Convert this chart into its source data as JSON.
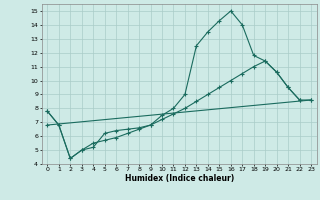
{
  "xlabel": "Humidex (Indice chaleur)",
  "bg_color": "#ceeae6",
  "grid_color": "#aaccc8",
  "line_color": "#1a6b5e",
  "xlim": [
    -0.5,
    23.5
  ],
  "ylim": [
    4,
    15.5
  ],
  "xticks": [
    0,
    1,
    2,
    3,
    4,
    5,
    6,
    7,
    8,
    9,
    10,
    11,
    12,
    13,
    14,
    15,
    16,
    17,
    18,
    19,
    20,
    21,
    22,
    23
  ],
  "yticks": [
    4,
    5,
    6,
    7,
    8,
    9,
    10,
    11,
    12,
    13,
    14,
    15
  ],
  "series1_x": [
    0,
    1,
    2,
    3,
    4,
    5,
    6,
    7,
    8,
    9,
    10,
    11,
    12,
    13,
    14,
    15,
    16,
    17,
    18,
    19,
    20,
    21,
    22
  ],
  "series1_y": [
    7.8,
    6.8,
    4.4,
    5.0,
    5.2,
    6.2,
    6.4,
    6.5,
    6.6,
    6.8,
    7.5,
    8.0,
    9.0,
    12.5,
    13.5,
    14.3,
    15.0,
    14.0,
    11.8,
    11.4,
    10.6,
    9.5,
    8.6
  ],
  "series2_x": [
    0,
    1,
    2,
    3,
    4,
    5,
    6,
    7,
    8,
    9,
    10,
    11,
    12,
    13,
    14,
    15,
    16,
    17,
    18,
    19,
    20,
    21,
    22,
    23
  ],
  "series2_y": [
    7.8,
    6.8,
    4.4,
    5.0,
    5.5,
    5.7,
    5.9,
    6.2,
    6.5,
    6.8,
    7.2,
    7.6,
    8.0,
    8.5,
    9.0,
    9.5,
    10.0,
    10.5,
    11.0,
    11.4,
    10.6,
    9.5,
    8.6,
    8.6
  ],
  "series3_x": [
    0,
    23
  ],
  "series3_y": [
    6.8,
    8.6
  ]
}
